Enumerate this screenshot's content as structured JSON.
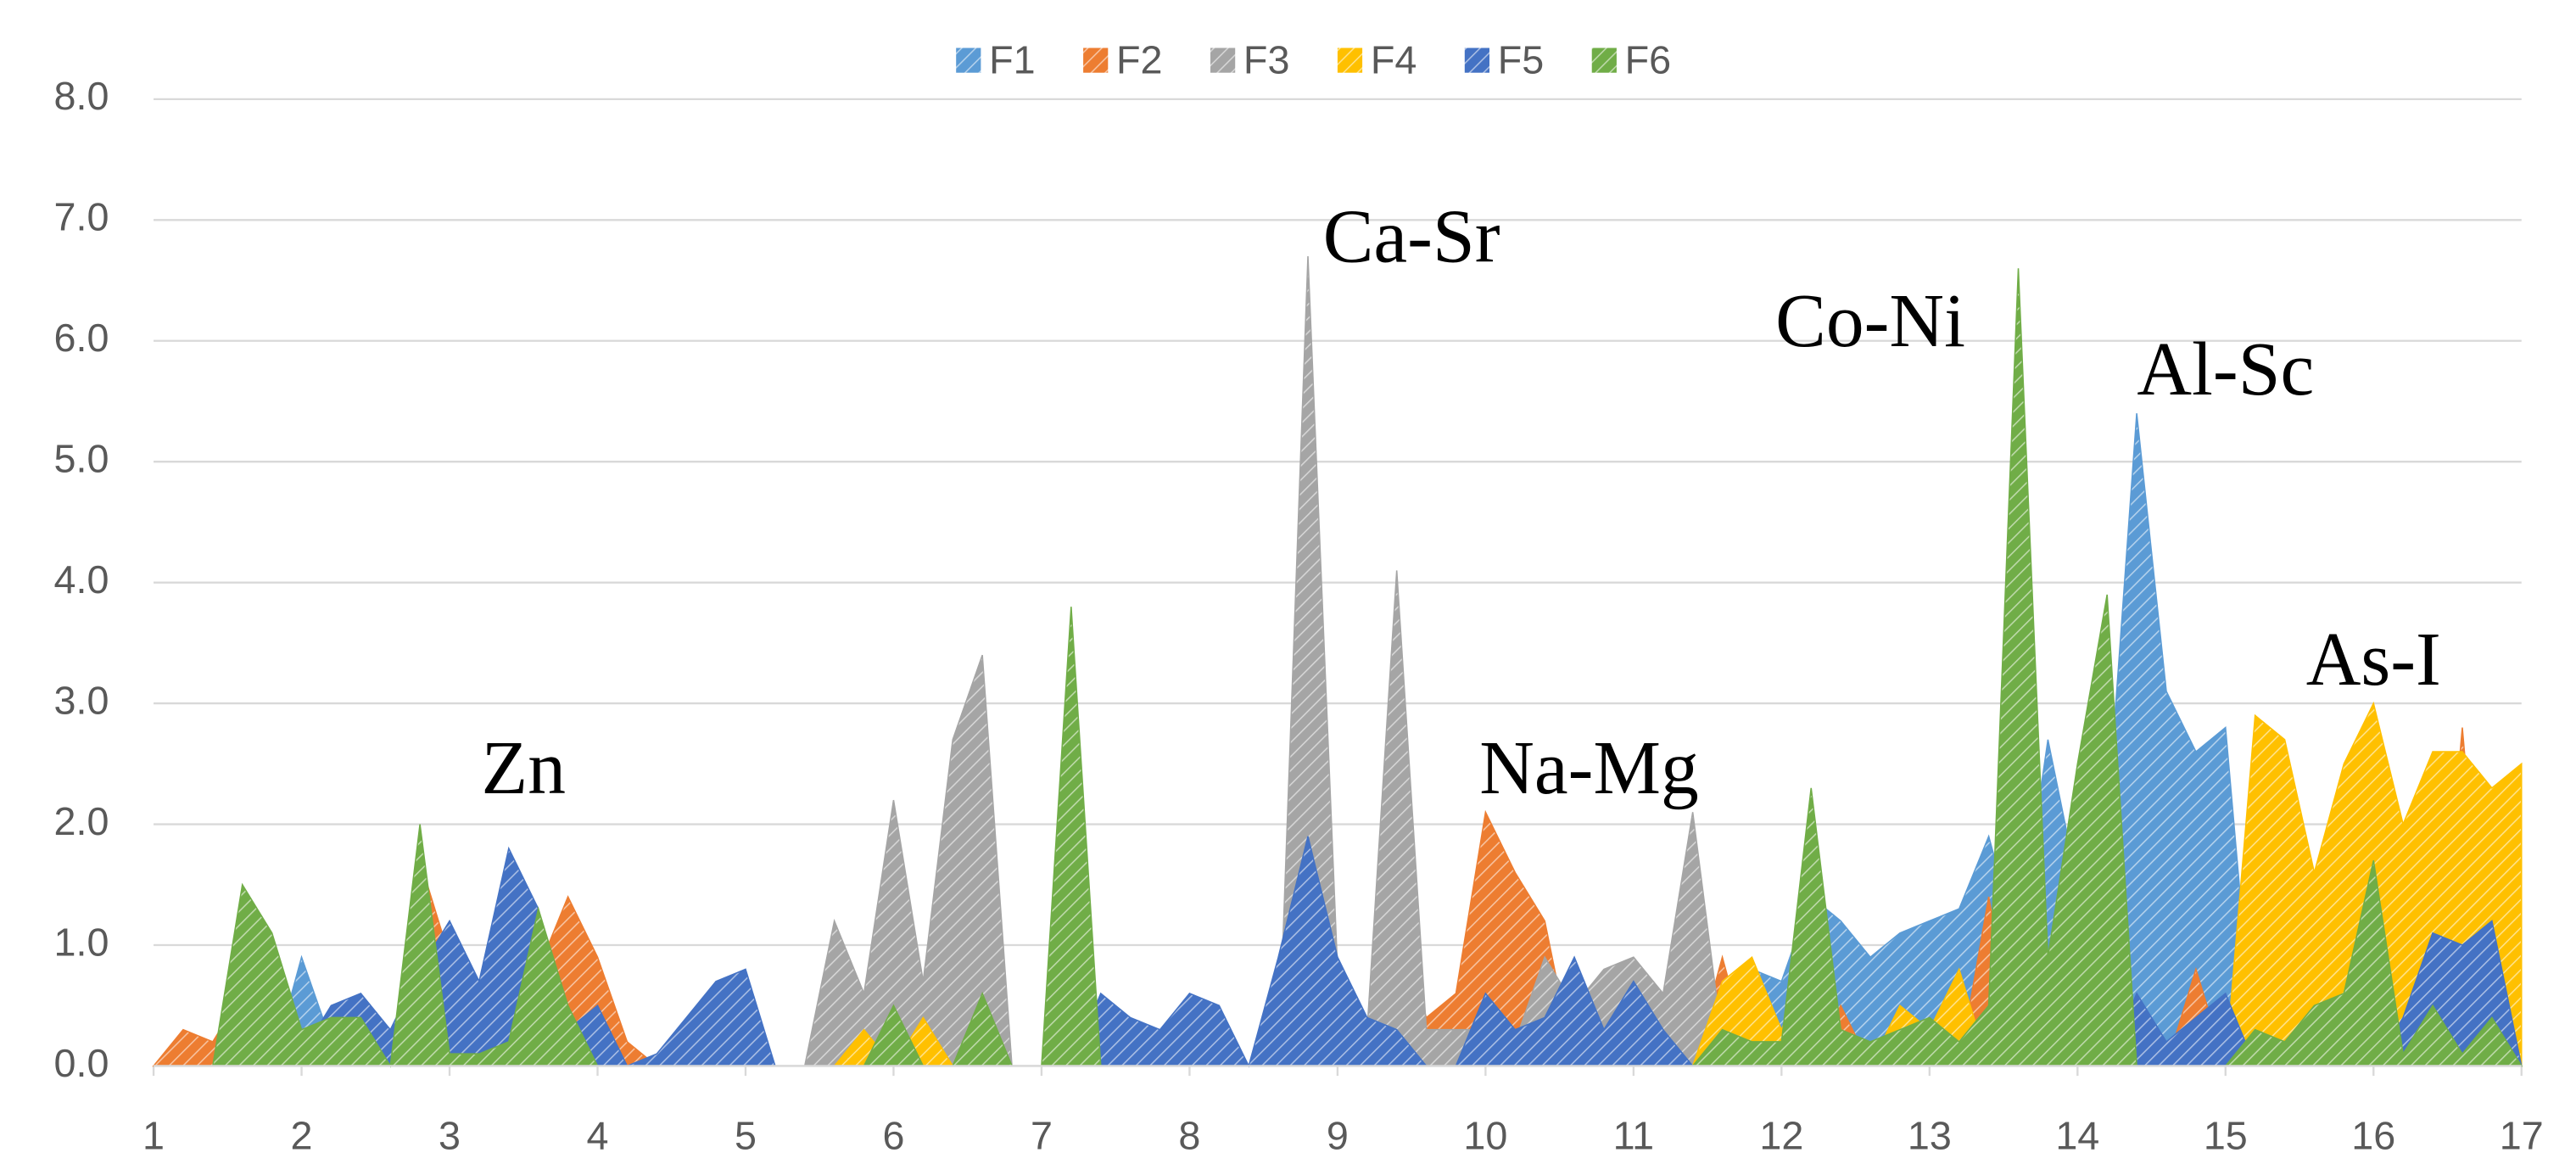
{
  "chart_data": {
    "type": "area",
    "x": [
      1,
      1.2,
      1.4,
      1.6,
      1.8,
      2,
      2.2,
      2.4,
      2.6,
      2.8,
      3,
      3.2,
      3.4,
      3.6,
      3.8,
      4,
      4.2,
      4.4,
      4.6,
      4.8,
      5,
      5.2,
      5.4,
      5.6,
      5.8,
      6,
      6.2,
      6.4,
      6.6,
      6.8,
      7,
      7.2,
      7.4,
      7.6,
      7.8,
      8,
      8.2,
      8.4,
      8.6,
      8.8,
      9,
      9.2,
      9.4,
      9.6,
      9.8,
      10,
      10.2,
      10.4,
      10.6,
      10.8,
      11,
      11.2,
      11.4,
      11.6,
      11.8,
      12,
      12.2,
      12.4,
      12.6,
      12.8,
      13,
      13.2,
      13.4,
      13.6,
      13.8,
      14,
      14.2,
      14.4,
      14.6,
      14.8,
      15,
      15.2,
      15.4,
      15.6,
      15.8,
      16,
      16.2,
      16.4,
      16.6,
      16.8,
      17
    ],
    "series": [
      {
        "name": "F1",
        "color": "#5b9bd5",
        "values": [
          0,
          0,
          0,
          0,
          0,
          0.9,
          0.2,
          0.1,
          0.1,
          0,
          0,
          0,
          0,
          0,
          0,
          0,
          0,
          0,
          0,
          0,
          0,
          0,
          0,
          0,
          0,
          0,
          0,
          0,
          0,
          0,
          0,
          0,
          0,
          0,
          0,
          0,
          0,
          0,
          0,
          0,
          0,
          0,
          0,
          0,
          0,
          0,
          0,
          0,
          0,
          0,
          0.2,
          0.3,
          0.5,
          0.6,
          0.8,
          0.7,
          1.4,
          1.2,
          0.9,
          1.1,
          1.2,
          1.3,
          1.9,
          1.0,
          2.7,
          1.5,
          2.0,
          5.4,
          3.1,
          2.6,
          2.8,
          0,
          0,
          0,
          0,
          0,
          0,
          0,
          0,
          0,
          0
        ]
      },
      {
        "name": "F2",
        "color": "#ed7d31",
        "values": [
          0,
          0.3,
          0.2,
          0.6,
          0,
          0,
          0,
          0,
          0,
          1.7,
          0.9,
          0.6,
          0.2,
          0.8,
          1.4,
          0.9,
          0.2,
          0,
          0,
          0,
          0,
          0,
          0,
          0,
          0,
          0,
          0,
          0.4,
          0,
          0,
          0,
          1.6,
          0.3,
          0,
          0,
          0,
          0,
          0,
          0,
          0,
          0,
          0,
          1.2,
          0.4,
          0.6,
          2.1,
          1.6,
          1.2,
          0,
          0,
          0,
          0,
          0,
          0.9,
          0,
          0,
          0,
          0.5,
          0,
          0,
          0,
          0,
          1.4,
          0,
          0,
          0,
          0,
          0,
          0,
          0.8,
          0,
          0,
          0,
          0,
          0,
          2.1,
          0,
          0,
          2.8,
          0,
          0
        ]
      },
      {
        "name": "F3",
        "color": "#a5a5a5",
        "values": [
          0,
          0,
          0,
          0,
          0,
          0,
          0,
          0,
          0,
          0,
          0,
          0,
          0,
          0,
          0,
          0,
          0,
          0,
          0,
          0,
          0,
          0,
          0,
          1.2,
          0.6,
          2.2,
          0.7,
          2.7,
          3.4,
          0,
          0,
          0,
          0,
          0,
          0,
          0,
          0,
          0,
          0,
          6.7,
          0.8,
          0.3,
          4.1,
          0.3,
          0.3,
          0.3,
          0.2,
          0.9,
          0.5,
          0.8,
          0.9,
          0.6,
          2.1,
          0.2,
          0,
          0,
          0,
          0,
          0,
          0,
          0,
          0,
          0,
          0,
          0,
          0,
          0,
          0,
          0,
          0,
          0,
          0,
          0,
          0,
          0,
          0,
          0,
          0,
          0,
          0,
          0
        ]
      },
      {
        "name": "F4",
        "color": "#ffc000",
        "values": [
          0,
          0,
          0,
          0,
          0,
          0,
          0,
          0,
          0,
          0,
          0,
          0,
          0,
          0,
          0,
          0,
          0,
          0,
          0,
          0,
          0,
          0,
          0,
          0,
          0.3,
          0,
          0.4,
          0,
          0,
          0,
          0,
          0,
          0,
          0,
          0,
          0,
          0,
          0,
          0,
          0,
          0,
          0,
          0,
          0,
          0,
          0,
          0,
          0,
          0,
          0,
          0,
          0,
          0,
          0.7,
          0.9,
          0.3,
          0.9,
          0,
          0,
          0.5,
          0.3,
          0.8,
          0,
          0,
          0,
          0,
          1.5,
          0,
          0,
          0,
          0,
          2.9,
          2.7,
          1.6,
          2.5,
          3.0,
          2.0,
          2.6,
          2.6,
          2.3,
          2.5
        ]
      },
      {
        "name": "F5",
        "color": "#4472c4",
        "values": [
          0,
          0,
          0,
          0,
          0,
          0.1,
          0.5,
          0.6,
          0.3,
          0.8,
          1.2,
          0.7,
          1.8,
          1.3,
          0.3,
          0.5,
          0,
          0.1,
          0.4,
          0.7,
          0.8,
          0,
          0,
          0,
          0,
          0,
          0,
          0,
          0.1,
          0,
          0,
          0,
          0.6,
          0.4,
          0.3,
          0.6,
          0.5,
          0,
          0.9,
          1.9,
          0.9,
          0.4,
          0.3,
          0,
          0,
          0.6,
          0.3,
          0.4,
          0.9,
          0.3,
          0.7,
          0.3,
          0,
          0,
          0,
          0,
          0,
          0,
          0,
          0,
          0,
          0,
          0,
          0,
          0,
          0,
          0,
          0.6,
          0.2,
          0.4,
          0.6,
          0,
          0,
          0,
          0,
          0,
          0.4,
          1.1,
          1.0,
          1.2,
          0
        ]
      },
      {
        "name": "F6",
        "color": "#70ad47",
        "values": [
          0,
          0,
          0,
          1.5,
          1.1,
          0.3,
          0.4,
          0.4,
          0,
          2.0,
          0.1,
          0.1,
          0.2,
          1.3,
          0.5,
          0,
          0,
          0,
          0,
          0,
          0,
          0,
          0,
          0,
          0,
          0.5,
          0,
          0,
          0.6,
          0,
          0,
          3.8,
          0,
          0,
          0,
          0,
          0,
          0,
          0,
          0,
          0,
          0,
          0,
          0,
          0,
          0,
          0,
          0,
          0,
          0,
          0,
          0,
          0,
          0.3,
          0.2,
          0.2,
          2.3,
          0.3,
          0.2,
          0.3,
          0.4,
          0.2,
          0.5,
          6.6,
          0.9,
          2.5,
          3.9,
          0,
          0,
          0,
          0,
          0.3,
          0.2,
          0.5,
          0.6,
          1.7,
          0.1,
          0.5,
          0.1,
          0.4,
          0
        ]
      }
    ],
    "xlim": [
      1,
      17
    ],
    "xticks": [
      1,
      2,
      3,
      4,
      5,
      6,
      7,
      8,
      9,
      10,
      11,
      12,
      13,
      14,
      15,
      16,
      17
    ],
    "ylim": [
      0,
      8
    ],
    "yticks": [
      {
        "value": 0,
        "label": "0.0"
      },
      {
        "value": 1,
        "label": "1.0"
      },
      {
        "value": 2,
        "label": "2.0"
      },
      {
        "value": 3,
        "label": "3.0"
      },
      {
        "value": 4,
        "label": "4.0"
      },
      {
        "value": 5,
        "label": "5.0"
      },
      {
        "value": 6,
        "label": "6.0"
      },
      {
        "value": 7,
        "label": "7.0"
      },
      {
        "value": 8,
        "label": "8.0"
      }
    ],
    "grid": true,
    "legend": "top",
    "annotations": [
      "Zn",
      "Ca-Sr",
      "Na-Mg",
      "Co-Ni",
      "Al-Sc",
      "As-I"
    ]
  }
}
